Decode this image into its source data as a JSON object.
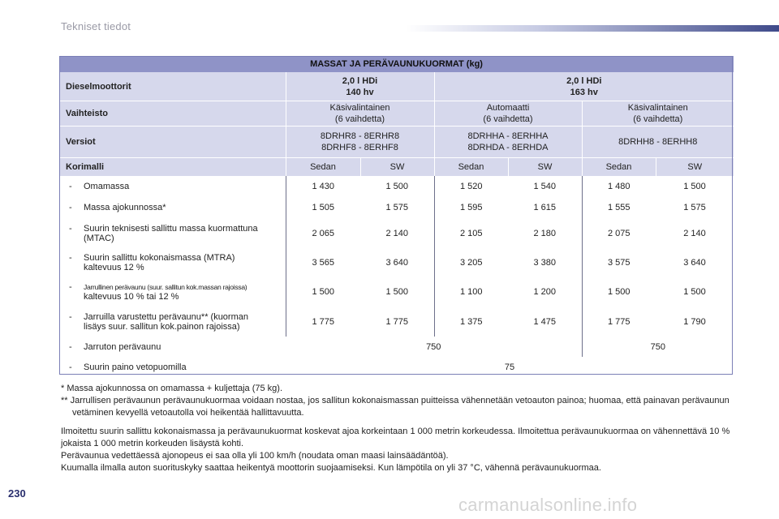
{
  "header": {
    "section_title": "Tekniset tiedot"
  },
  "table": {
    "title": "MASSAT JA PERÄVAUNUKUORMAT (kg)",
    "engine_label": "Dieselmoottorit",
    "engines": [
      {
        "line1": "2,0 l HDi",
        "line2": "140 hv"
      },
      {
        "line1": "2,0 l HDi",
        "line2": "163 hv"
      }
    ],
    "gearbox_label": "Vaihteisto",
    "gearboxes": [
      {
        "line1": "Käsivalintainen",
        "line2": "(6 vaihdetta)"
      },
      {
        "line1": "Automaatti",
        "line2": "(6 vaihdetta)"
      },
      {
        "line1": "Käsivalintainen",
        "line2": "(6 vaihdetta)"
      }
    ],
    "versions_label": "Versiot",
    "versions": [
      {
        "line1": "8DRHR8 - 8ERHR8",
        "line2": "8DRHF8 - 8ERHF8"
      },
      {
        "line1": "8DRHHA - 8ERHHA",
        "line2": "8DRHDA - 8ERHDA"
      },
      {
        "line1": "8DRHH8 - 8ERHH8",
        "line2": ""
      }
    ],
    "body_label": "Korimalli",
    "bodies": [
      "Sedan",
      "SW",
      "Sedan",
      "SW",
      "Sedan",
      "SW"
    ],
    "rows": [
      {
        "dash": "-",
        "label": "Omamassa",
        "label2": "",
        "values": [
          "1 430",
          "1 500",
          "1 520",
          "1 540",
          "1 480",
          "1 500"
        ]
      },
      {
        "dash": "-",
        "label": "Massa ajokunnossa*",
        "label2": "",
        "values": [
          "1 505",
          "1 575",
          "1 595",
          "1 615",
          "1 555",
          "1 575"
        ]
      },
      {
        "dash": "-",
        "label": "Suurin teknisesti sallittu massa kuormattuna",
        "label2": "(MTAC)",
        "values": [
          "2 065",
          "2 140",
          "2 105",
          "2 180",
          "2 075",
          "2 140"
        ]
      },
      {
        "dash": "-",
        "label": "Suurin sallittu kokonaismassa (MTRA)",
        "label2": "kaltevuus 12 %",
        "values": [
          "3 565",
          "3 640",
          "3 205",
          "3 380",
          "3 575",
          "3 640"
        ]
      },
      {
        "dash": "-",
        "label": "Jarrullinen perävaunu (suur. sallitun kok.massan rajoissa)",
        "label2": "kaltevuus 10 % tai 12 %",
        "values": [
          "1 500",
          "1 500",
          "1 100",
          "1 200",
          "1 500",
          "1 500"
        ]
      },
      {
        "dash": "-",
        "label": "Jarruilla varustettu perävaunu** (kuorman",
        "label2": "lisäys suur. sallitun kok.painon rajoissa)",
        "values": [
          "1 775",
          "1 775",
          "1 375",
          "1 475",
          "1 775",
          "1 790"
        ]
      }
    ],
    "unbraked": {
      "dash": "-",
      "label": "Jarruton perävaunu",
      "value_a": "750",
      "value_b": "750"
    },
    "nose": {
      "dash": "-",
      "label": "Suurin paino vetopuomilla",
      "value": "75"
    }
  },
  "notes": {
    "fn1": "* Massa ajokunnossa on omamassa + kuljettaja (75 kg).",
    "fn2": "** Jarrullisen perävaunun perävaunukuormaa voidaan nostaa, jos sallitun kokonaismassan puitteissa vähennetään vetoauton painoa; huomaa, että painavan perävaunun vetäminen kevyellä vetoautolla voi heikentää hallittavuutta.",
    "p1": "Ilmoitettu suurin sallittu kokonaismassa ja perävaunukuormat koskevat ajoa korkeintaan 1 000 metrin korkeudessa. Ilmoitettua perävaunukuormaa on vähennettävä 10 % jokaista 1 000 metrin korkeuden lisäystä kohti.",
    "p2": "Perävaunua vedettäessä ajonopeus ei saa olla yli 100 km/h (noudata oman maasi lainsäädäntöä).",
    "p3": "Kuumalla ilmalla auton suorituskyky saattaa heikentyä moottorin suojaamiseksi. Kun lämpötila on yli 37 °C, vähennä perävaunukuormaa."
  },
  "page_number": "230",
  "watermark": "carmanualsonline.info"
}
